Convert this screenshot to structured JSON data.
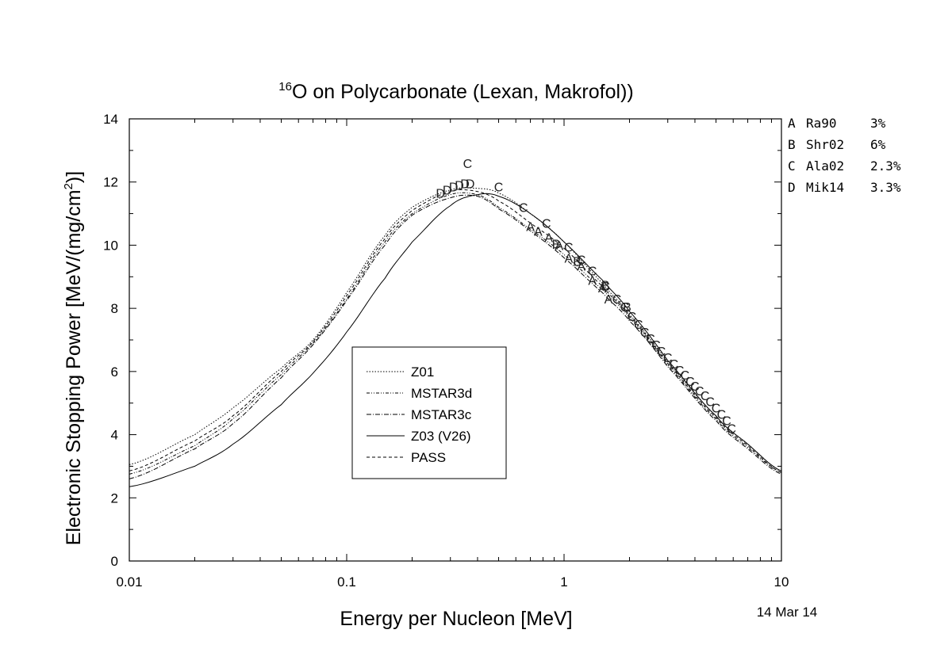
{
  "chart_data": {
    "type": "line",
    "title_sup": "16",
    "title_main": "O on Polycarbonate (Lexan, Makrofol))",
    "xlabel": "Energy per Nucleon [MeV]",
    "ylabel_main": "Electronic Stopping Power [MeV/(mg/cm",
    "ylabel_sup": "2",
    "ylabel_end": ")]",
    "x_scale": "log",
    "xlim": [
      0.01,
      10
    ],
    "ylim": [
      0,
      14
    ],
    "x_ticks": [
      0.01,
      0.1,
      1,
      10
    ],
    "x_tick_labels": [
      "0.01",
      "0.1",
      "1",
      "10"
    ],
    "y_ticks": [
      0,
      2,
      4,
      6,
      8,
      10,
      12,
      14
    ],
    "y_tick_labels": [
      "0",
      "2",
      "4",
      "6",
      "8",
      "10",
      "12",
      "14"
    ],
    "date": "14 Mar 14",
    "legend_placement": "center",
    "series": [
      {
        "name": "Z01",
        "dash": "1.5,2",
        "x": [
          0.01,
          0.02,
          0.03,
          0.05,
          0.07,
          0.1,
          0.15,
          0.2,
          0.3,
          0.4,
          0.5,
          0.7,
          1,
          1.5,
          2,
          3,
          5,
          7,
          10
        ],
        "y": [
          3.05,
          4.0,
          4.85,
          6.1,
          7.0,
          8.5,
          10.3,
          11.2,
          11.75,
          11.8,
          11.65,
          11.0,
          10.1,
          8.8,
          7.8,
          6.3,
          4.6,
          3.7,
          2.85
        ]
      },
      {
        "name": "MSTAR3d",
        "dash": "4,2,1,2,1,2",
        "x": [
          0.01,
          0.02,
          0.03,
          0.05,
          0.07,
          0.1,
          0.15,
          0.2,
          0.3,
          0.4,
          0.5,
          0.7,
          1,
          1.5,
          2,
          3,
          5,
          7,
          10
        ],
        "y": [
          2.75,
          3.65,
          4.5,
          5.9,
          6.9,
          8.3,
          10.1,
          11.0,
          11.6,
          11.6,
          11.2,
          10.5,
          9.7,
          8.6,
          7.7,
          6.2,
          4.5,
          3.6,
          2.8
        ]
      },
      {
        "name": "MSTAR3c",
        "dash": "6,2,1,2",
        "x": [
          0.01,
          0.02,
          0.03,
          0.05,
          0.07,
          0.1,
          0.15,
          0.2,
          0.3,
          0.4,
          0.5,
          0.7,
          1,
          1.5,
          2,
          3,
          5,
          7,
          10
        ],
        "y": [
          2.6,
          3.55,
          4.35,
          5.8,
          6.85,
          8.25,
          10.0,
          10.95,
          11.5,
          11.55,
          11.15,
          10.45,
          9.6,
          8.5,
          7.6,
          6.15,
          4.45,
          3.55,
          2.75
        ]
      },
      {
        "name": "Z03 (V26)",
        "dash": "",
        "x": [
          0.01,
          0.02,
          0.03,
          0.05,
          0.07,
          0.1,
          0.15,
          0.2,
          0.3,
          0.4,
          0.5,
          0.7,
          1,
          1.5,
          2,
          3,
          5,
          7,
          10
        ],
        "y": [
          2.35,
          3.0,
          3.7,
          4.95,
          5.95,
          7.25,
          8.95,
          10.1,
          11.25,
          11.6,
          11.55,
          11.0,
          10.1,
          8.9,
          7.9,
          6.35,
          4.6,
          3.7,
          2.85
        ]
      },
      {
        "name": "PASS",
        "dash": "4,3",
        "x": [
          0.01,
          0.02,
          0.03,
          0.05,
          0.07,
          0.1,
          0.15,
          0.2,
          0.3,
          0.4,
          0.5,
          0.7,
          1,
          1.5,
          2,
          3,
          5,
          7,
          10
        ],
        "y": [
          2.85,
          3.8,
          4.6,
          6.0,
          6.95,
          8.4,
          10.2,
          11.1,
          11.7,
          11.7,
          11.4,
          10.7,
          9.9,
          8.7,
          7.75,
          6.25,
          4.55,
          3.65,
          2.8
        ]
      }
    ],
    "references": [
      {
        "letter": "A",
        "name": "Ra90",
        "error": "3%"
      },
      {
        "letter": "B",
        "name": "Shr02",
        "error": "6%"
      },
      {
        "letter": "C",
        "name": "Ala02",
        "error": "2.3%"
      },
      {
        "letter": "D",
        "name": "Mik14",
        "error": "3.3%"
      }
    ],
    "experimental_points": [
      {
        "label": "C",
        "x": [
          0.36,
          0.5,
          0.65,
          0.83,
          1.05,
          1.2,
          1.35,
          1.55,
          1.75,
          1.9,
          2.05,
          2.2,
          2.35,
          2.5,
          2.65,
          2.8,
          3.0,
          3.2,
          3.4,
          3.6,
          3.8,
          4.0,
          4.2,
          4.45,
          4.7,
          5.0,
          5.3,
          5.6,
          5.9
        ],
        "y": [
          12.6,
          11.85,
          11.2,
          10.7,
          9.95,
          9.55,
          9.2,
          8.7,
          8.3,
          8.05,
          7.75,
          7.5,
          7.25,
          7.05,
          6.85,
          6.65,
          6.45,
          6.25,
          6.05,
          5.9,
          5.7,
          5.55,
          5.4,
          5.25,
          5.05,
          4.85,
          4.65,
          4.45,
          4.2
        ]
      },
      {
        "label": "A",
        "x": [
          0.7,
          0.76,
          0.85,
          0.95,
          1.05,
          1.2,
          1.35,
          1.5,
          1.6
        ],
        "y": [
          10.6,
          10.45,
          10.25,
          10.0,
          9.6,
          9.35,
          8.9,
          8.65,
          8.3
        ]
      },
      {
        "label": "B",
        "x": [
          0.92,
          1.15,
          1.55,
          1.95
        ],
        "y": [
          10.05,
          9.5,
          8.75,
          8.05
        ]
      },
      {
        "label": "D",
        "x": [
          0.27,
          0.29,
          0.31,
          0.33,
          0.35,
          0.37
        ],
        "y": [
          11.65,
          11.75,
          11.85,
          11.9,
          11.95,
          11.95
        ]
      }
    ]
  }
}
